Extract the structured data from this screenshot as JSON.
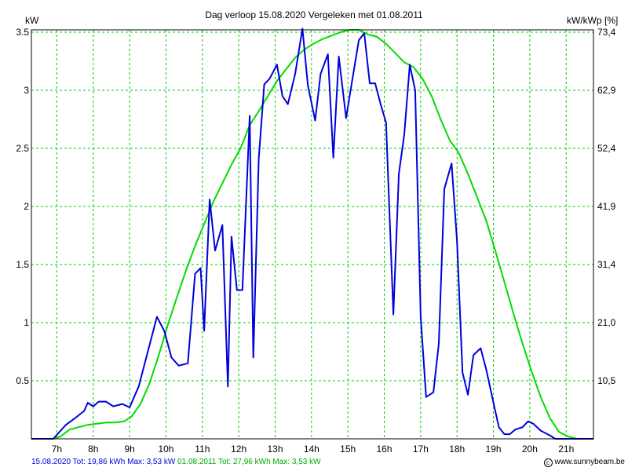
{
  "chart_data": {
    "type": "line",
    "title": "Dag  verloop 15.08.2020   Vergeleken met 01.08.2011",
    "ylabel_left": "kW",
    "ylabel_right": "kW/kWp [%]",
    "xlabel": "",
    "x_ticks": [
      "7h",
      "8h",
      "9h",
      "10h",
      "11h",
      "12h",
      "13h",
      "14h",
      "15h",
      "16h",
      "17h",
      "18h",
      "19h",
      "20h",
      "21h"
    ],
    "y_ticks_left": [
      "0.5",
      "1",
      "1.5",
      "2",
      "2.5",
      "3",
      "3.5"
    ],
    "y_ticks_right": [
      "10,5",
      "21,0",
      "31,4",
      "41,9",
      "52,4",
      "62,9",
      "73,4"
    ],
    "xlim": [
      6.3,
      21.75
    ],
    "ylim": [
      0,
      3.52
    ],
    "grid": true,
    "series": [
      {
        "name": "15.08.2020",
        "color": "#0000dd",
        "x": [
          6.3,
          6.9,
          7.25,
          7.55,
          7.75,
          7.85,
          8.0,
          8.15,
          8.35,
          8.55,
          8.8,
          9.0,
          9.25,
          9.5,
          9.75,
          9.95,
          10.15,
          10.35,
          10.6,
          10.8,
          10.95,
          11.05,
          11.2,
          11.35,
          11.55,
          11.7,
          11.8,
          11.95,
          12.1,
          12.3,
          12.4,
          12.55,
          12.7,
          12.85,
          13.05,
          13.2,
          13.35,
          13.55,
          13.75,
          13.9,
          14.1,
          14.25,
          14.45,
          14.6,
          14.75,
          14.95,
          15.1,
          15.3,
          15.45,
          15.6,
          15.75,
          15.9,
          16.05,
          16.25,
          16.4,
          16.55,
          16.7,
          16.85,
          17.0,
          17.15,
          17.35,
          17.5,
          17.65,
          17.85,
          18.0,
          18.15,
          18.3,
          18.45,
          18.65,
          18.8,
          19.0,
          19.15,
          19.3,
          19.45,
          19.6,
          19.8,
          19.95,
          20.1,
          20.3,
          20.55,
          20.7,
          20.95,
          21.15,
          21.35,
          21.75
        ],
        "values": [
          0,
          0,
          0.12,
          0.19,
          0.24,
          0.31,
          0.28,
          0.32,
          0.32,
          0.28,
          0.3,
          0.27,
          0.45,
          0.75,
          1.05,
          0.93,
          0.7,
          0.63,
          0.65,
          1.42,
          1.47,
          0.93,
          2.06,
          1.62,
          1.84,
          0.45,
          1.74,
          1.28,
          1.28,
          2.78,
          0.7,
          2.41,
          3.05,
          3.1,
          3.22,
          2.95,
          2.88,
          3.14,
          3.53,
          3.04,
          2.74,
          3.14,
          3.31,
          2.42,
          3.29,
          2.76,
          3.05,
          3.43,
          3.49,
          3.06,
          3.06,
          2.88,
          2.72,
          1.07,
          2.28,
          2.62,
          3.22,
          3.0,
          1.05,
          0.36,
          0.4,
          0.82,
          2.15,
          2.37,
          1.7,
          0.57,
          0.38,
          0.72,
          0.78,
          0.6,
          0.31,
          0.1,
          0.04,
          0.04,
          0.08,
          0.1,
          0.15,
          0.13,
          0.07,
          0.03,
          0,
          0,
          0,
          0,
          0
        ]
      },
      {
        "name": "01.08.2011",
        "color": "#00dd00",
        "x": [
          6.3,
          6.9,
          7.1,
          7.35,
          7.6,
          7.85,
          8.1,
          8.35,
          8.6,
          8.85,
          9.05,
          9.3,
          9.55,
          9.8,
          10.05,
          10.3,
          10.55,
          10.8,
          11.05,
          11.3,
          11.55,
          11.8,
          12.05,
          12.3,
          12.55,
          12.8,
          13.05,
          13.3,
          13.55,
          13.8,
          14.05,
          14.3,
          14.55,
          14.8,
          15.05,
          15.3,
          15.55,
          15.8,
          16.05,
          16.3,
          16.55,
          16.8,
          17.05,
          17.3,
          17.55,
          17.8,
          18.05,
          18.3,
          18.55,
          18.8,
          19.05,
          19.3,
          19.55,
          19.8,
          20.05,
          20.3,
          20.55,
          20.8,
          21.05,
          21.3,
          21.5,
          21.75
        ],
        "values": [
          0,
          0,
          0.02,
          0.08,
          0.1,
          0.12,
          0.13,
          0.14,
          0.14,
          0.15,
          0.19,
          0.3,
          0.48,
          0.72,
          0.98,
          1.22,
          1.45,
          1.66,
          1.85,
          2.04,
          2.2,
          2.36,
          2.5,
          2.7,
          2.82,
          2.95,
          3.08,
          3.18,
          3.28,
          3.35,
          3.4,
          3.44,
          3.47,
          3.5,
          3.52,
          3.52,
          3.48,
          3.46,
          3.4,
          3.32,
          3.24,
          3.2,
          3.1,
          2.95,
          2.75,
          2.57,
          2.46,
          2.28,
          2.08,
          1.88,
          1.62,
          1.35,
          1.08,
          0.82,
          0.58,
          0.36,
          0.18,
          0.06,
          0.02,
          0,
          0,
          0
        ]
      }
    ]
  },
  "footer": {
    "left_blue": "15.08.2020 Tot: 19,86 kWh Max: 3,53 kW",
    "left_green": " 01.08.2011 Tot: 27,96 kWh Max: 3,53 kW",
    "right": "www.sunnybeam.be",
    "right_icon": "copyright-icon"
  }
}
